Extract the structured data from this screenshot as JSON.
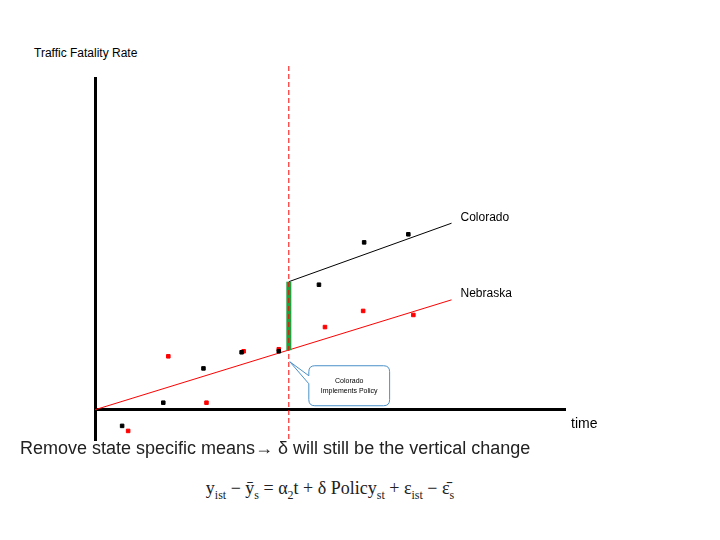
{
  "chart_data": {
    "type": "scatter",
    "y_label": "Traffic Fatality Rate",
    "x_label": "time",
    "xlim": [
      0,
      468
    ],
    "ylim": [
      -30,
      329
    ],
    "tick_labels": false,
    "grid": false,
    "series": [
      {
        "name": "Colorado",
        "color": "#000000",
        "marker": "square",
        "x": [
          27,
          68,
          108,
          146,
          183,
          223,
          268,
          312
        ],
        "values": [
          -16,
          7,
          41,
          57,
          58,
          124,
          166,
          174
        ],
        "fit": {
          "x": [
            193,
            355
          ],
          "y": [
            127,
            185
          ]
        }
      },
      {
        "name": "Nebraska",
        "color": "#ff0000",
        "marker": "square",
        "x": [
          33,
          73,
          111,
          148,
          183,
          229,
          267,
          317
        ],
        "values": [
          -21,
          53,
          7,
          58,
          60,
          82,
          98,
          94
        ],
        "fit": {
          "x": [
            0,
            355
          ],
          "y": [
            0,
            109
          ]
        }
      }
    ],
    "policy": {
      "x": 193,
      "color": "#ff0000",
      "line_style": "dashed",
      "label": [
        "Colorado",
        "Implements Policy"
      ]
    },
    "effect": {
      "x": 193,
      "from": 59,
      "to": 127,
      "color": "#22a040"
    },
    "footer": "Remove state specific means→ δ will still be the vertical change",
    "equation": [
      [
        "y",
        "ist"
      ],
      [
        " − ȳ",
        "s"
      ],
      [
        " =  α",
        "2"
      ],
      [
        "t + δ Policy",
        "st"
      ],
      [
        " + ε",
        "ist"
      ],
      [
        " − ε̄",
        "s"
      ]
    ]
  }
}
